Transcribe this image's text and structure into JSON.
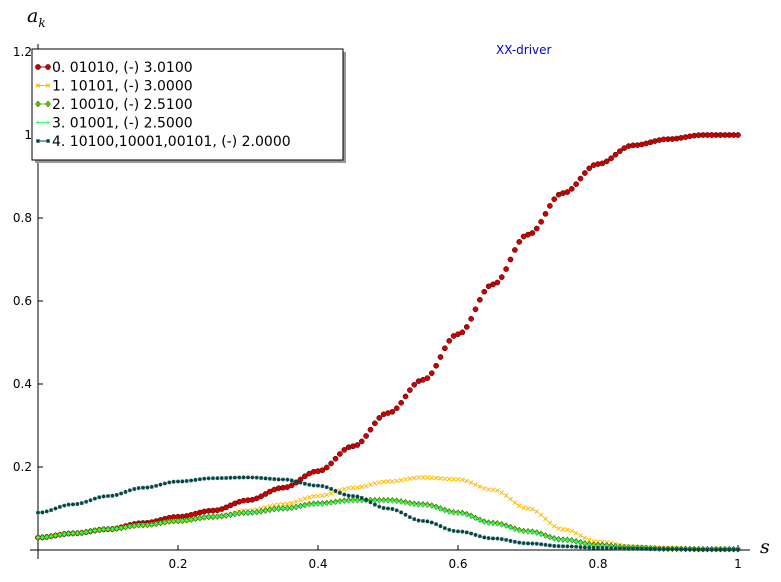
{
  "chart_data": {
    "type": "scatter",
    "title": "",
    "xlabel": "s",
    "ylabel": "a",
    "ylabel_subscript": "k",
    "annotation": "XX-driver",
    "xlim": [
      0,
      1
    ],
    "ylim": [
      0,
      1.2
    ],
    "xticks": [
      {
        "value": 0.2,
        "label": "0.2"
      },
      {
        "value": 0.4,
        "label": "0.4"
      },
      {
        "value": 0.6,
        "label": "0.6"
      },
      {
        "value": 0.8,
        "label": "0.8"
      },
      {
        "value": 1.0,
        "label": "1"
      }
    ],
    "yticks": [
      {
        "value": 0.2,
        "label": "0.2"
      },
      {
        "value": 0.4,
        "label": "0.4"
      },
      {
        "value": 0.6,
        "label": "0.6"
      },
      {
        "value": 0.8,
        "label": "0.8"
      },
      {
        "value": 1.0,
        "label": "1"
      },
      {
        "value": 1.2,
        "label": "1.2"
      }
    ],
    "legend_position": "top-left",
    "series": [
      {
        "name": "0. 01010, (-) 3.0100",
        "color": "#cc0000",
        "marker": "circle",
        "x": [
          0,
          0.05,
          0.1,
          0.15,
          0.2,
          0.25,
          0.3,
          0.35,
          0.4,
          0.45,
          0.5,
          0.55,
          0.6,
          0.65,
          0.7,
          0.75,
          0.8,
          0.85,
          0.9,
          0.95,
          1.0
        ],
        "y": [
          0.03,
          0.04,
          0.05,
          0.065,
          0.08,
          0.095,
          0.12,
          0.15,
          0.19,
          0.25,
          0.33,
          0.41,
          0.52,
          0.64,
          0.76,
          0.86,
          0.93,
          0.975,
          0.99,
          1.0,
          1.0
        ]
      },
      {
        "name": "1. 10101, (-) 3.0000",
        "color": "#ffbb00",
        "marker": "x",
        "x": [
          0,
          0.05,
          0.1,
          0.15,
          0.2,
          0.25,
          0.3,
          0.35,
          0.4,
          0.45,
          0.5,
          0.55,
          0.6,
          0.65,
          0.7,
          0.75,
          0.8,
          0.85,
          0.9,
          0.95,
          1.0
        ],
        "y": [
          0.03,
          0.04,
          0.05,
          0.06,
          0.07,
          0.08,
          0.095,
          0.11,
          0.13,
          0.15,
          0.165,
          0.175,
          0.17,
          0.145,
          0.1,
          0.05,
          0.02,
          0.008,
          0.004,
          0.002,
          0.002
        ]
      },
      {
        "name": "2. 10010, (-) 2.5100",
        "color": "#55cc00",
        "marker": "diamond",
        "x": [
          0,
          0.05,
          0.1,
          0.15,
          0.2,
          0.25,
          0.3,
          0.35,
          0.4,
          0.45,
          0.5,
          0.55,
          0.6,
          0.65,
          0.7,
          0.75,
          0.8,
          0.85,
          0.9,
          0.95,
          1.0
        ],
        "y": [
          0.03,
          0.04,
          0.05,
          0.06,
          0.07,
          0.08,
          0.09,
          0.1,
          0.112,
          0.12,
          0.12,
          0.11,
          0.09,
          0.065,
          0.045,
          0.025,
          0.012,
          0.006,
          0.003,
          0.002,
          0.002
        ]
      },
      {
        "name": "3. 01001, (-) 2.5000",
        "color": "#33ff66",
        "marker": "plus",
        "x": [
          0,
          0.05,
          0.1,
          0.15,
          0.2,
          0.25,
          0.3,
          0.35,
          0.4,
          0.45,
          0.5,
          0.55,
          0.6,
          0.65,
          0.7,
          0.75,
          0.8,
          0.85,
          0.9,
          0.95,
          1.0
        ],
        "y": [
          0.03,
          0.04,
          0.05,
          0.06,
          0.07,
          0.08,
          0.09,
          0.1,
          0.11,
          0.118,
          0.118,
          0.108,
          0.088,
          0.063,
          0.043,
          0.024,
          0.011,
          0.005,
          0.003,
          0.002,
          0.002
        ]
      },
      {
        "name": "4. 10100,10001,00101, (-) 2.0000",
        "color": "#004444",
        "marker": "star",
        "x": [
          0,
          0.05,
          0.1,
          0.15,
          0.2,
          0.25,
          0.3,
          0.35,
          0.4,
          0.45,
          0.5,
          0.55,
          0.6,
          0.65,
          0.7,
          0.75,
          0.8,
          0.85,
          0.9,
          0.95,
          1.0
        ],
        "y": [
          0.09,
          0.11,
          0.13,
          0.15,
          0.165,
          0.173,
          0.175,
          0.17,
          0.155,
          0.13,
          0.1,
          0.07,
          0.045,
          0.028,
          0.016,
          0.009,
          0.005,
          0.003,
          0.002,
          0.001,
          0.001
        ]
      }
    ]
  }
}
